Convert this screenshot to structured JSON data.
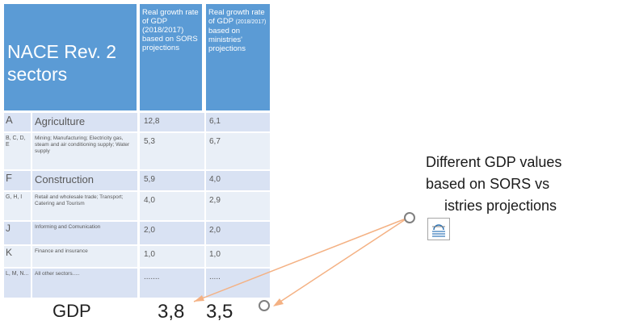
{
  "table": {
    "header": {
      "sectors": "NACE Rev. 2 sectors",
      "col1": "Real growth rate of GDP (2018/2017) based on SORS projections",
      "col2_part1": "Real growth rate of GDP",
      "col2_part2": "(2018/2017)",
      "col2_part3": "based on ministries' projections"
    },
    "rows": [
      {
        "code": "A",
        "name": "Agriculture",
        "v1": "12,8",
        "v2": "6,1"
      },
      {
        "code": "B, C, D, E",
        "name": "Mining; Manufacturing; Electricity gas, steam and air conditioning supply; Water supply",
        "v1": "5,3",
        "v2": "6,7"
      },
      {
        "code": "F",
        "name": "Construction",
        "v1": "5,9",
        "v2": "4,0"
      },
      {
        "code": "G, H, I",
        "name": "Retail and wholesale trade; Transport; Catering and Tourism",
        "v1": "4,0",
        "v2": "2,9"
      },
      {
        "code": "J",
        "name": "Informing and Comunication",
        "v1": "2,0",
        "v2": "2,0"
      },
      {
        "code": "K",
        "name": "Finance and insurance",
        "v1": "1,0",
        "v2": "1,0"
      },
      {
        "code": "L, M, N...",
        "name": "All other sectors.....",
        "v1": ".......",
        "v2": "....."
      }
    ],
    "gdp": {
      "label": "GDP",
      "v1": "3,8",
      "v2": "3,5"
    }
  },
  "note": {
    "line1": "Different GDP values",
    "line2": "based on SORS vs",
    "line3": "istries projections"
  },
  "icons": {
    "layout_options": "layout-options-icon"
  },
  "colors": {
    "header": "#5b9bd5",
    "row": "#d9e2f3",
    "arrow": "#f4b183"
  }
}
